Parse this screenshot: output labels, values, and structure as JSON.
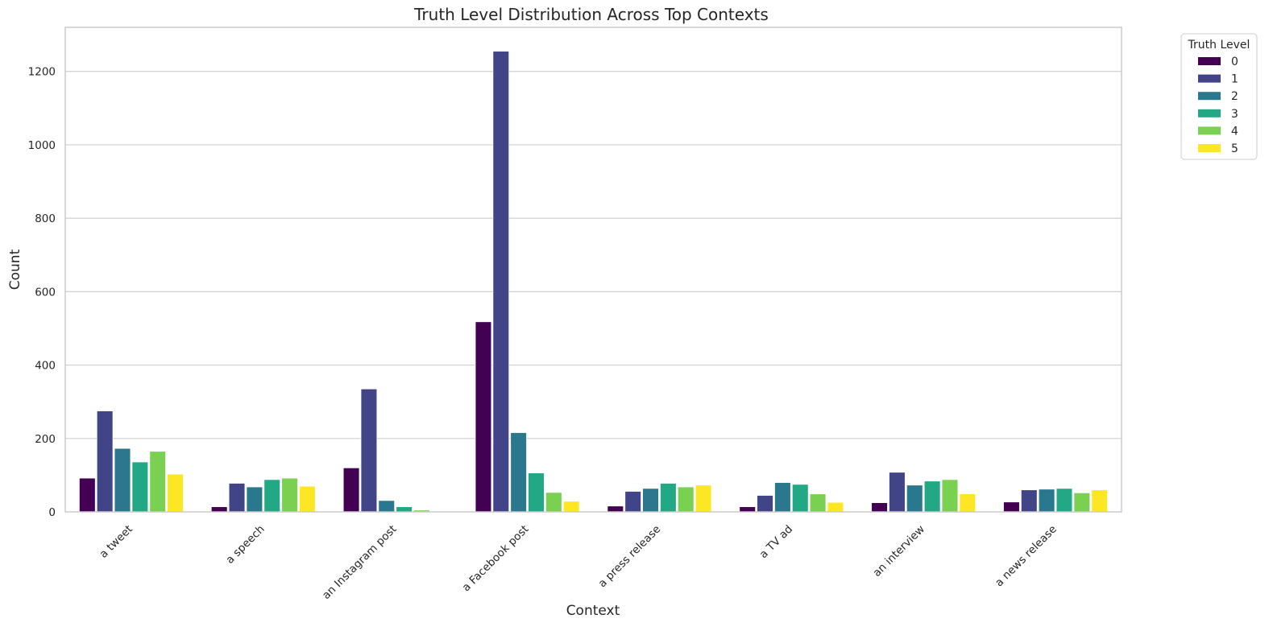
{
  "chart_data": {
    "type": "bar",
    "title": "Truth Level Distribution Across Top Contexts",
    "xlabel": "Context",
    "ylabel": "Count",
    "ylim": [
      0,
      1320
    ],
    "yticks": [
      0,
      200,
      400,
      600,
      800,
      1000,
      1200
    ],
    "grid": "horizontal",
    "legend": {
      "title": "Truth Level",
      "placement": "outside-top-right"
    },
    "categories": [
      "a tweet",
      "a speech",
      "an Instagram post",
      "a Facebook post",
      "a press release",
      "a TV ad",
      "an interview",
      "a news release"
    ],
    "series": [
      {
        "name": "0",
        "color": "#440154",
        "values": [
          92,
          14,
          120,
          518,
          16,
          14,
          25,
          27
        ]
      },
      {
        "name": "1",
        "color": "#414487",
        "values": [
          275,
          78,
          335,
          1255,
          56,
          45,
          108,
          60
        ]
      },
      {
        "name": "2",
        "color": "#2a788e",
        "values": [
          173,
          68,
          31,
          216,
          64,
          80,
          73,
          62
        ]
      },
      {
        "name": "3",
        "color": "#22a884",
        "values": [
          136,
          88,
          14,
          106,
          78,
          75,
          84,
          64
        ]
      },
      {
        "name": "4",
        "color": "#7ad151",
        "values": [
          165,
          92,
          5,
          53,
          68,
          49,
          88,
          52
        ]
      },
      {
        "name": "5",
        "color": "#fde725",
        "values": [
          103,
          70,
          0,
          29,
          73,
          26,
          49,
          60
        ]
      }
    ]
  }
}
